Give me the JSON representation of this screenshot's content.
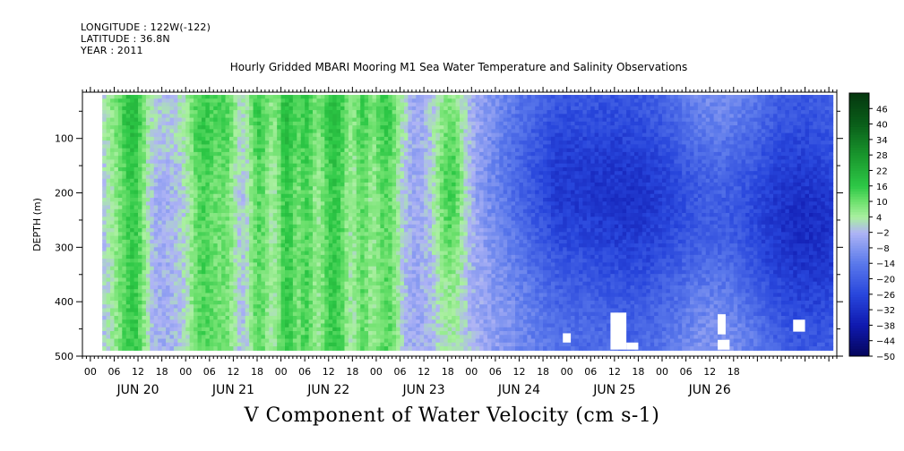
{
  "header": {
    "longitude": "LONGITUDE : 122W(-122)",
    "latitude": "LATITUDE : 36.8N",
    "year": "YEAR : 2011"
  },
  "chart_data": {
    "type": "heatmap",
    "title": "Hourly Gridded MBARI Mooring M1 Sea Water Temperature and Salinity Observations",
    "xlabel": "V Component of Water Velocity (cm s-1)",
    "ylabel": "DEPTH (m)",
    "x_range_hours": [
      -2,
      188
    ],
    "data_time_range_hours": [
      3,
      187
    ],
    "y_range": [
      500,
      15
    ],
    "data_depth_range": [
      20,
      488
    ],
    "y_ticks": [
      100,
      200,
      300,
      400,
      500
    ],
    "x_hour_ticks": [
      "00",
      "06",
      "12",
      "18",
      "00",
      "06",
      "12",
      "18",
      "00",
      "06",
      "12",
      "18",
      "00",
      "06",
      "12",
      "18",
      "00",
      "06",
      "12",
      "18",
      "00",
      "06",
      "12",
      "18",
      "00",
      "06",
      "12",
      "18"
    ],
    "day_labels": [
      "JUN 20",
      "JUN 21",
      "JUN 22",
      "JUN 23",
      "JUN 24",
      "JUN 25",
      "JUN 26"
    ],
    "colorbar": {
      "levels": [
        46,
        40,
        34,
        28,
        22,
        16,
        10,
        4,
        -2,
        -8,
        -14,
        -20,
        -26,
        -32,
        -38,
        -44,
        -50
      ],
      "range": [
        -50,
        52
      ]
    },
    "bands": [
      {
        "center_h": 8,
        "width_h": 5,
        "value": 8
      },
      {
        "center_h": 11,
        "width_h": 3,
        "value": 5
      },
      {
        "center_h": 28,
        "width_h": 4,
        "value": 9
      },
      {
        "center_h": 34,
        "width_h": 3,
        "value": 6
      },
      {
        "center_h": 42,
        "width_h": 3,
        "value": 12
      },
      {
        "center_h": 49,
        "width_h": 3,
        "value": 14
      },
      {
        "center_h": 54,
        "width_h": 2,
        "value": 8
      },
      {
        "center_h": 61,
        "width_h": 4,
        "value": 12
      },
      {
        "center_h": 68,
        "width_h": 2,
        "value": 7
      },
      {
        "center_h": 74,
        "width_h": 4,
        "value": 12
      },
      {
        "center_h": 90,
        "width_h": 4,
        "value": 10
      }
    ],
    "missing": [
      {
        "h0": 119,
        "h1": 121,
        "d0": 458,
        "d1": 475
      },
      {
        "h0": 131,
        "h1": 135,
        "d0": 420,
        "d1": 488
      },
      {
        "h0": 135,
        "h1": 138,
        "d0": 475,
        "d1": 488
      },
      {
        "h0": 158,
        "h1": 160,
        "d0": 423,
        "d1": 460
      },
      {
        "h0": 158,
        "h1": 161,
        "d0": 470,
        "d1": 488
      },
      {
        "h0": 177,
        "h1": 180,
        "d0": 433,
        "d1": 455
      }
    ]
  },
  "colors": {
    "green_strong": "#1faa3a",
    "green_light": "#8ee07a",
    "lavender": "#aab0ee",
    "blue_mid": "#5a78e6",
    "blue_dark": "#0a14a0"
  }
}
